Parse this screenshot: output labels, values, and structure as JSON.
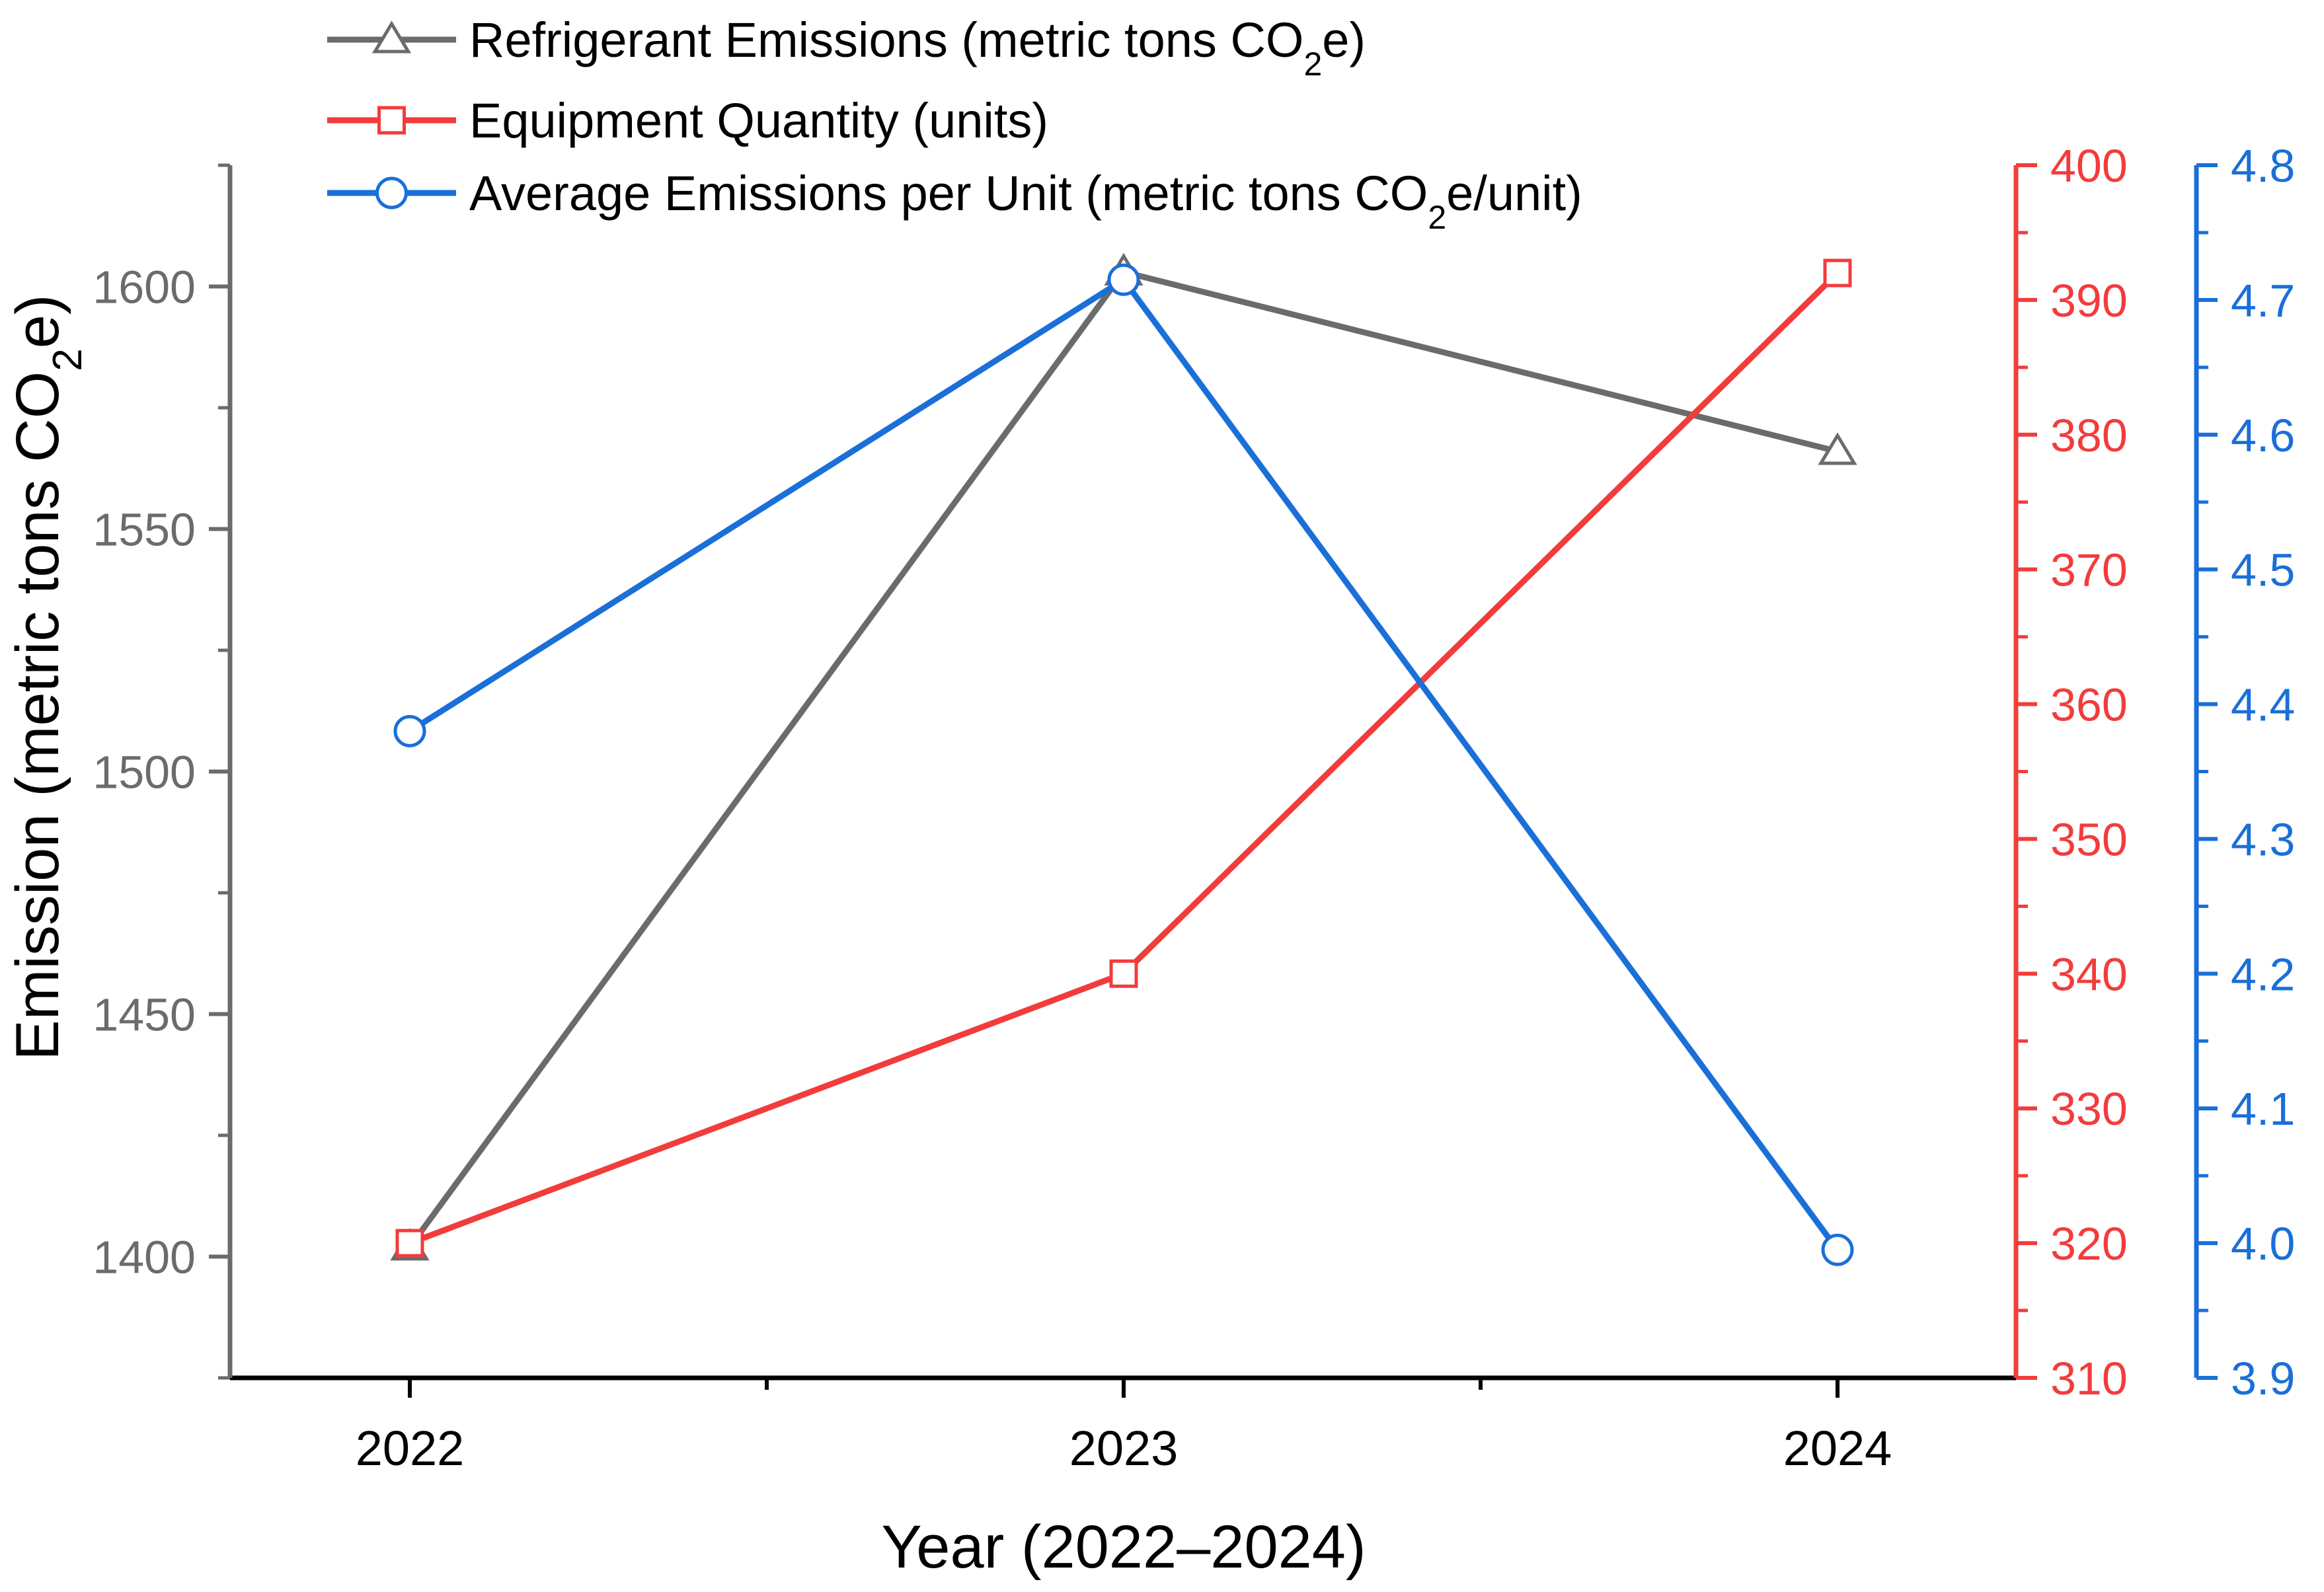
{
  "chart_data": {
    "type": "line",
    "x_label": "Year (2022–2024)",
    "categories": [
      "2022",
      "2023",
      "2024"
    ],
    "axes": {
      "left": {
        "label_main": "Emission (metric tons CO",
        "label_sub": "2",
        "label_tail": "e)",
        "min": 1375,
        "max": 1625,
        "ticks": [
          1400,
          1450,
          1500,
          1550,
          1600
        ],
        "minor_step": 25,
        "color": "#6b6b6b"
      },
      "right1": {
        "min": 310,
        "max": 400,
        "ticks": [
          310,
          320,
          330,
          340,
          350,
          360,
          370,
          380,
          390,
          400
        ],
        "minor_step": 5,
        "color": "#f23c3c"
      },
      "right2": {
        "min": 3.9,
        "max": 4.8,
        "ticks": [
          "3.9",
          "4.0",
          "4.1",
          "4.2",
          "4.3",
          "4.4",
          "4.5",
          "4.6",
          "4.7",
          "4.8"
        ],
        "minor_step": 0.05,
        "color": "#1a6fd8"
      }
    },
    "series": [
      {
        "name_main": "Refrigerant Emissions (metric tons CO",
        "name_sub": "2",
        "name_tail": "e)",
        "axis": "left",
        "marker": "triangle",
        "color": "#6b6b6b",
        "values": [
          1402,
          1603,
          1566
        ]
      },
      {
        "name_main": "Equipment Quantity (units)",
        "name_sub": "",
        "name_tail": "",
        "axis": "right1",
        "marker": "square",
        "color": "#f23c3c",
        "values": [
          320,
          340,
          392
        ]
      },
      {
        "name_main": "Average Emissions per Unit (metric tons CO",
        "name_sub": "2",
        "name_tail": "e/unit)",
        "axis": "right2",
        "marker": "circle",
        "color": "#1a6fd8",
        "values": [
          4.38,
          4.715,
          3.995
        ]
      }
    ],
    "legend_position": "top-left"
  }
}
